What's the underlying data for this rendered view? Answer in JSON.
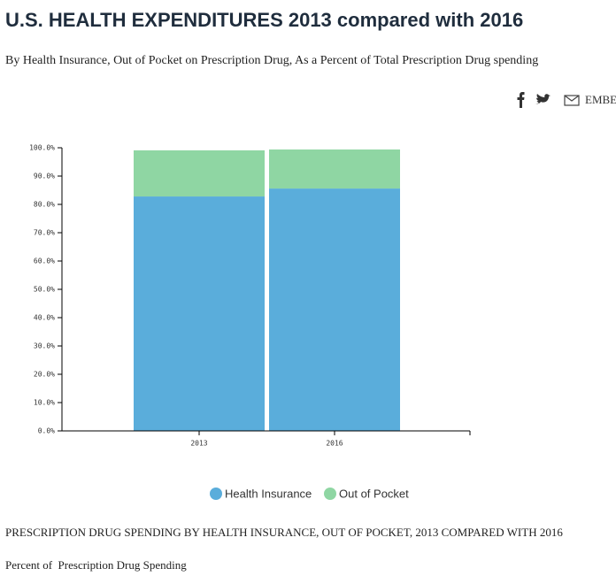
{
  "header": {
    "title": "U.S. HEALTH EXPENDITURES 2013 compared with 2016",
    "subtitle": "By Health Insurance, Out of Pocket on Prescription Drug, As a Percent of Total Prescription Drug spending",
    "embed": "EMBED"
  },
  "chart_data": {
    "type": "stacked_bar",
    "categories": [
      "2013",
      "2016"
    ],
    "series": [
      {
        "name": "Health Insurance",
        "color": "#5aaddb",
        "values": [
          82.8,
          85.6
        ]
      },
      {
        "name": "Out of Pocket",
        "color": "#8fd6a3",
        "values": [
          16.3,
          13.8
        ]
      }
    ],
    "ylim": [
      0,
      100
    ],
    "yticks": [
      {
        "value": 0,
        "label": "0.0%"
      },
      {
        "value": 10,
        "label": "10.0%"
      },
      {
        "value": 20,
        "label": "20.0%"
      },
      {
        "value": 30,
        "label": "30.0%"
      },
      {
        "value": 40,
        "label": "40.0%"
      },
      {
        "value": 50,
        "label": "50.0%"
      },
      {
        "value": 60,
        "label": "60.0%"
      },
      {
        "value": 70,
        "label": "70.0%"
      },
      {
        "value": 80,
        "label": "80.0%"
      },
      {
        "value": 90,
        "label": "90.0%"
      },
      {
        "value": 100,
        "label": "100.0%"
      }
    ]
  },
  "footer": {
    "caption": "PRESCRIPTION DRUG SPENDING BY HEALTH INSURANCE, OUT OF POCKET, 2013 COMPARED WITH 2016",
    "note": "Percent of  Prescription Drug Spending"
  }
}
